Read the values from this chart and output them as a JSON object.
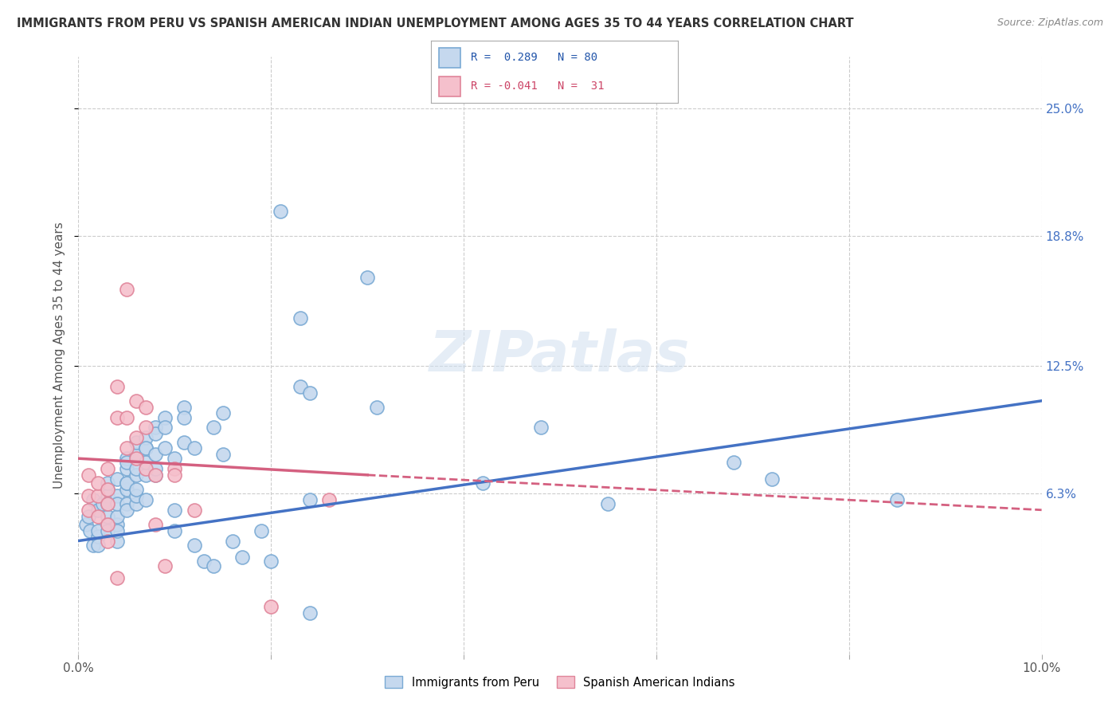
{
  "title": "IMMIGRANTS FROM PERU VS SPANISH AMERICAN INDIAN UNEMPLOYMENT AMONG AGES 35 TO 44 YEARS CORRELATION CHART",
  "source": "Source: ZipAtlas.com",
  "ylabel_label": "Unemployment Among Ages 35 to 44 years",
  "right_yticks": [
    "25.0%",
    "18.8%",
    "12.5%",
    "6.3%"
  ],
  "right_ytick_vals": [
    0.25,
    0.188,
    0.125,
    0.063
  ],
  "xlim": [
    0.0,
    0.1
  ],
  "ylim": [
    -0.015,
    0.275
  ],
  "blue_color": "#c5d8ee",
  "pink_color": "#f5c0cc",
  "blue_edge_color": "#7aaad4",
  "pink_edge_color": "#e0859a",
  "blue_line_color": "#4472C4",
  "pink_line_color": "#d46080",
  "scatter_blue": [
    [
      0.0008,
      0.048
    ],
    [
      0.001,
      0.052
    ],
    [
      0.0012,
      0.045
    ],
    [
      0.0015,
      0.038
    ],
    [
      0.0015,
      0.06
    ],
    [
      0.002,
      0.042
    ],
    [
      0.002,
      0.055
    ],
    [
      0.002,
      0.045
    ],
    [
      0.002,
      0.038
    ],
    [
      0.0025,
      0.058
    ],
    [
      0.003,
      0.048
    ],
    [
      0.003,
      0.065
    ],
    [
      0.003,
      0.062
    ],
    [
      0.003,
      0.052
    ],
    [
      0.003,
      0.045
    ],
    [
      0.003,
      0.068
    ],
    [
      0.003,
      0.058
    ],
    [
      0.004,
      0.048
    ],
    [
      0.004,
      0.04
    ],
    [
      0.004,
      0.062
    ],
    [
      0.004,
      0.052
    ],
    [
      0.004,
      0.07
    ],
    [
      0.004,
      0.058
    ],
    [
      0.004,
      0.045
    ],
    [
      0.005,
      0.075
    ],
    [
      0.005,
      0.065
    ],
    [
      0.005,
      0.058
    ],
    [
      0.005,
      0.08
    ],
    [
      0.005,
      0.068
    ],
    [
      0.005,
      0.055
    ],
    [
      0.005,
      0.078
    ],
    [
      0.005,
      0.068
    ],
    [
      0.006,
      0.058
    ],
    [
      0.006,
      0.082
    ],
    [
      0.006,
      0.072
    ],
    [
      0.006,
      0.062
    ],
    [
      0.006,
      0.088
    ],
    [
      0.006,
      0.075
    ],
    [
      0.006,
      0.065
    ],
    [
      0.007,
      0.085
    ],
    [
      0.007,
      0.072
    ],
    [
      0.007,
      0.06
    ],
    [
      0.007,
      0.09
    ],
    [
      0.007,
      0.078
    ],
    [
      0.007,
      0.085
    ],
    [
      0.008,
      0.072
    ],
    [
      0.008,
      0.095
    ],
    [
      0.008,
      0.082
    ],
    [
      0.008,
      0.092
    ],
    [
      0.008,
      0.075
    ],
    [
      0.009,
      0.1
    ],
    [
      0.009,
      0.085
    ],
    [
      0.009,
      0.095
    ],
    [
      0.01,
      0.08
    ],
    [
      0.01,
      0.055
    ],
    [
      0.01,
      0.045
    ],
    [
      0.011,
      0.105
    ],
    [
      0.011,
      0.088
    ],
    [
      0.011,
      0.1
    ],
    [
      0.012,
      0.085
    ],
    [
      0.012,
      0.038
    ],
    [
      0.013,
      0.03
    ],
    [
      0.014,
      0.028
    ],
    [
      0.014,
      0.095
    ],
    [
      0.015,
      0.102
    ],
    [
      0.015,
      0.082
    ],
    [
      0.016,
      0.04
    ],
    [
      0.017,
      0.032
    ],
    [
      0.019,
      0.045
    ],
    [
      0.02,
      0.03
    ],
    [
      0.021,
      0.2
    ],
    [
      0.023,
      0.148
    ],
    [
      0.023,
      0.115
    ],
    [
      0.024,
      0.112
    ],
    [
      0.024,
      0.06
    ],
    [
      0.024,
      0.005
    ],
    [
      0.03,
      0.168
    ],
    [
      0.031,
      0.105
    ],
    [
      0.042,
      0.068
    ],
    [
      0.048,
      0.095
    ],
    [
      0.068,
      0.078
    ],
    [
      0.055,
      0.058
    ],
    [
      0.072,
      0.07
    ],
    [
      0.085,
      0.06
    ]
  ],
  "scatter_pink": [
    [
      0.001,
      0.062
    ],
    [
      0.001,
      0.055
    ],
    [
      0.001,
      0.072
    ],
    [
      0.002,
      0.062
    ],
    [
      0.002,
      0.052
    ],
    [
      0.002,
      0.068
    ],
    [
      0.003,
      0.058
    ],
    [
      0.003,
      0.048
    ],
    [
      0.003,
      0.075
    ],
    [
      0.003,
      0.065
    ],
    [
      0.003,
      0.04
    ],
    [
      0.004,
      0.022
    ],
    [
      0.004,
      0.115
    ],
    [
      0.004,
      0.1
    ],
    [
      0.005,
      0.085
    ],
    [
      0.005,
      0.162
    ],
    [
      0.005,
      0.1
    ],
    [
      0.006,
      0.09
    ],
    [
      0.006,
      0.08
    ],
    [
      0.006,
      0.108
    ],
    [
      0.007,
      0.095
    ],
    [
      0.007,
      0.105
    ],
    [
      0.007,
      0.075
    ],
    [
      0.008,
      0.072
    ],
    [
      0.008,
      0.048
    ],
    [
      0.009,
      0.028
    ],
    [
      0.01,
      0.075
    ],
    [
      0.01,
      0.072
    ],
    [
      0.012,
      0.055
    ],
    [
      0.02,
      0.008
    ],
    [
      0.026,
      0.06
    ]
  ],
  "blue_trendline_solid": [
    [
      0.0,
      0.04
    ],
    [
      0.1,
      0.108
    ]
  ],
  "pink_trendline_solid": [
    [
      0.0,
      0.08
    ],
    [
      0.03,
      0.072
    ]
  ],
  "pink_trendline_dashed": [
    [
      0.03,
      0.072
    ],
    [
      0.1,
      0.055
    ]
  ]
}
